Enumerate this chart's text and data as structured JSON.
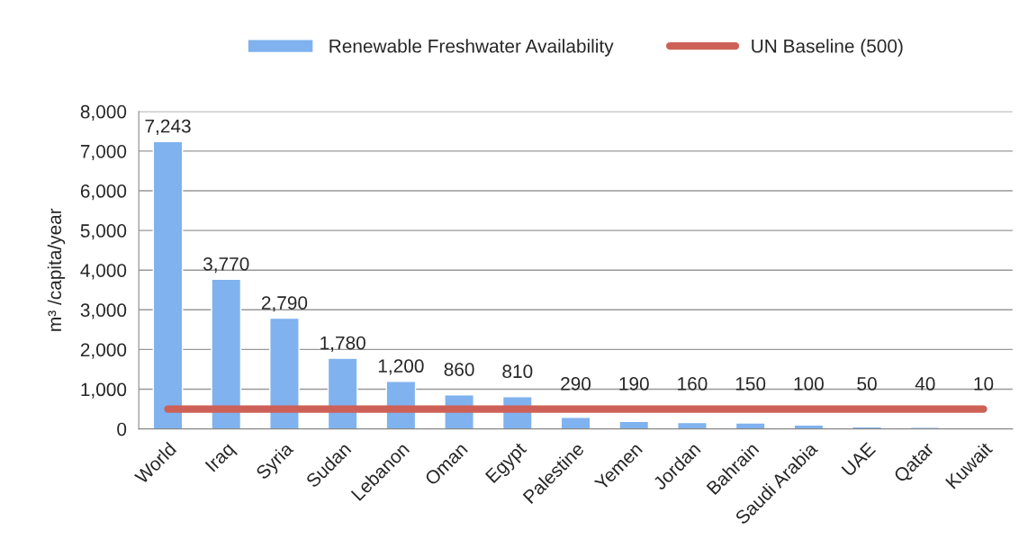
{
  "chart_data": {
    "type": "bar",
    "categories": [
      "World",
      "Iraq",
      "Syria",
      "Sudan",
      "Lebanon",
      "Oman",
      "Egypt",
      "Palestine",
      "Yemen",
      "Jordan",
      "Bahrain",
      "Saudi Arabia",
      "UAE",
      "Qatar",
      "Kuwait"
    ],
    "series": [
      {
        "name": "Renewable Freshwater Availability",
        "color": "#7fb2ee",
        "values": [
          7243,
          3770,
          2790,
          1780,
          1200,
          860,
          810,
          290,
          190,
          160,
          150,
          100,
          50,
          40,
          10
        ],
        "value_labels": [
          "7,243",
          "3,770",
          "2,790",
          "1,780",
          "1,200",
          "860",
          "810",
          "290",
          "190",
          "160",
          "150",
          "100",
          "50",
          "40",
          "10"
        ]
      },
      {
        "name": "UN Baseline (500)",
        "type": "line",
        "color": "#cd6158",
        "values": [
          500,
          500,
          500,
          500,
          500,
          500,
          500,
          500,
          500,
          500,
          500,
          500,
          500,
          500,
          500
        ]
      }
    ],
    "ylabel": "m³ /capita/year",
    "ylim": [
      0,
      8000
    ],
    "yticks": [
      0,
      {
        "value": 1000,
        "label": "1,000"
      },
      {
        "value": 2000,
        "label": "2,000"
      },
      {
        "value": 3000,
        "label": "3,000"
      },
      {
        "value": 4000,
        "label": "4,000"
      },
      {
        "value": 5000,
        "label": "5,000"
      },
      {
        "value": 6000,
        "label": "6,000"
      },
      {
        "value": 7000,
        "label": "7,000"
      },
      {
        "value": 8000,
        "label": "8,000"
      }
    ],
    "grid": "y",
    "legend": "top"
  }
}
